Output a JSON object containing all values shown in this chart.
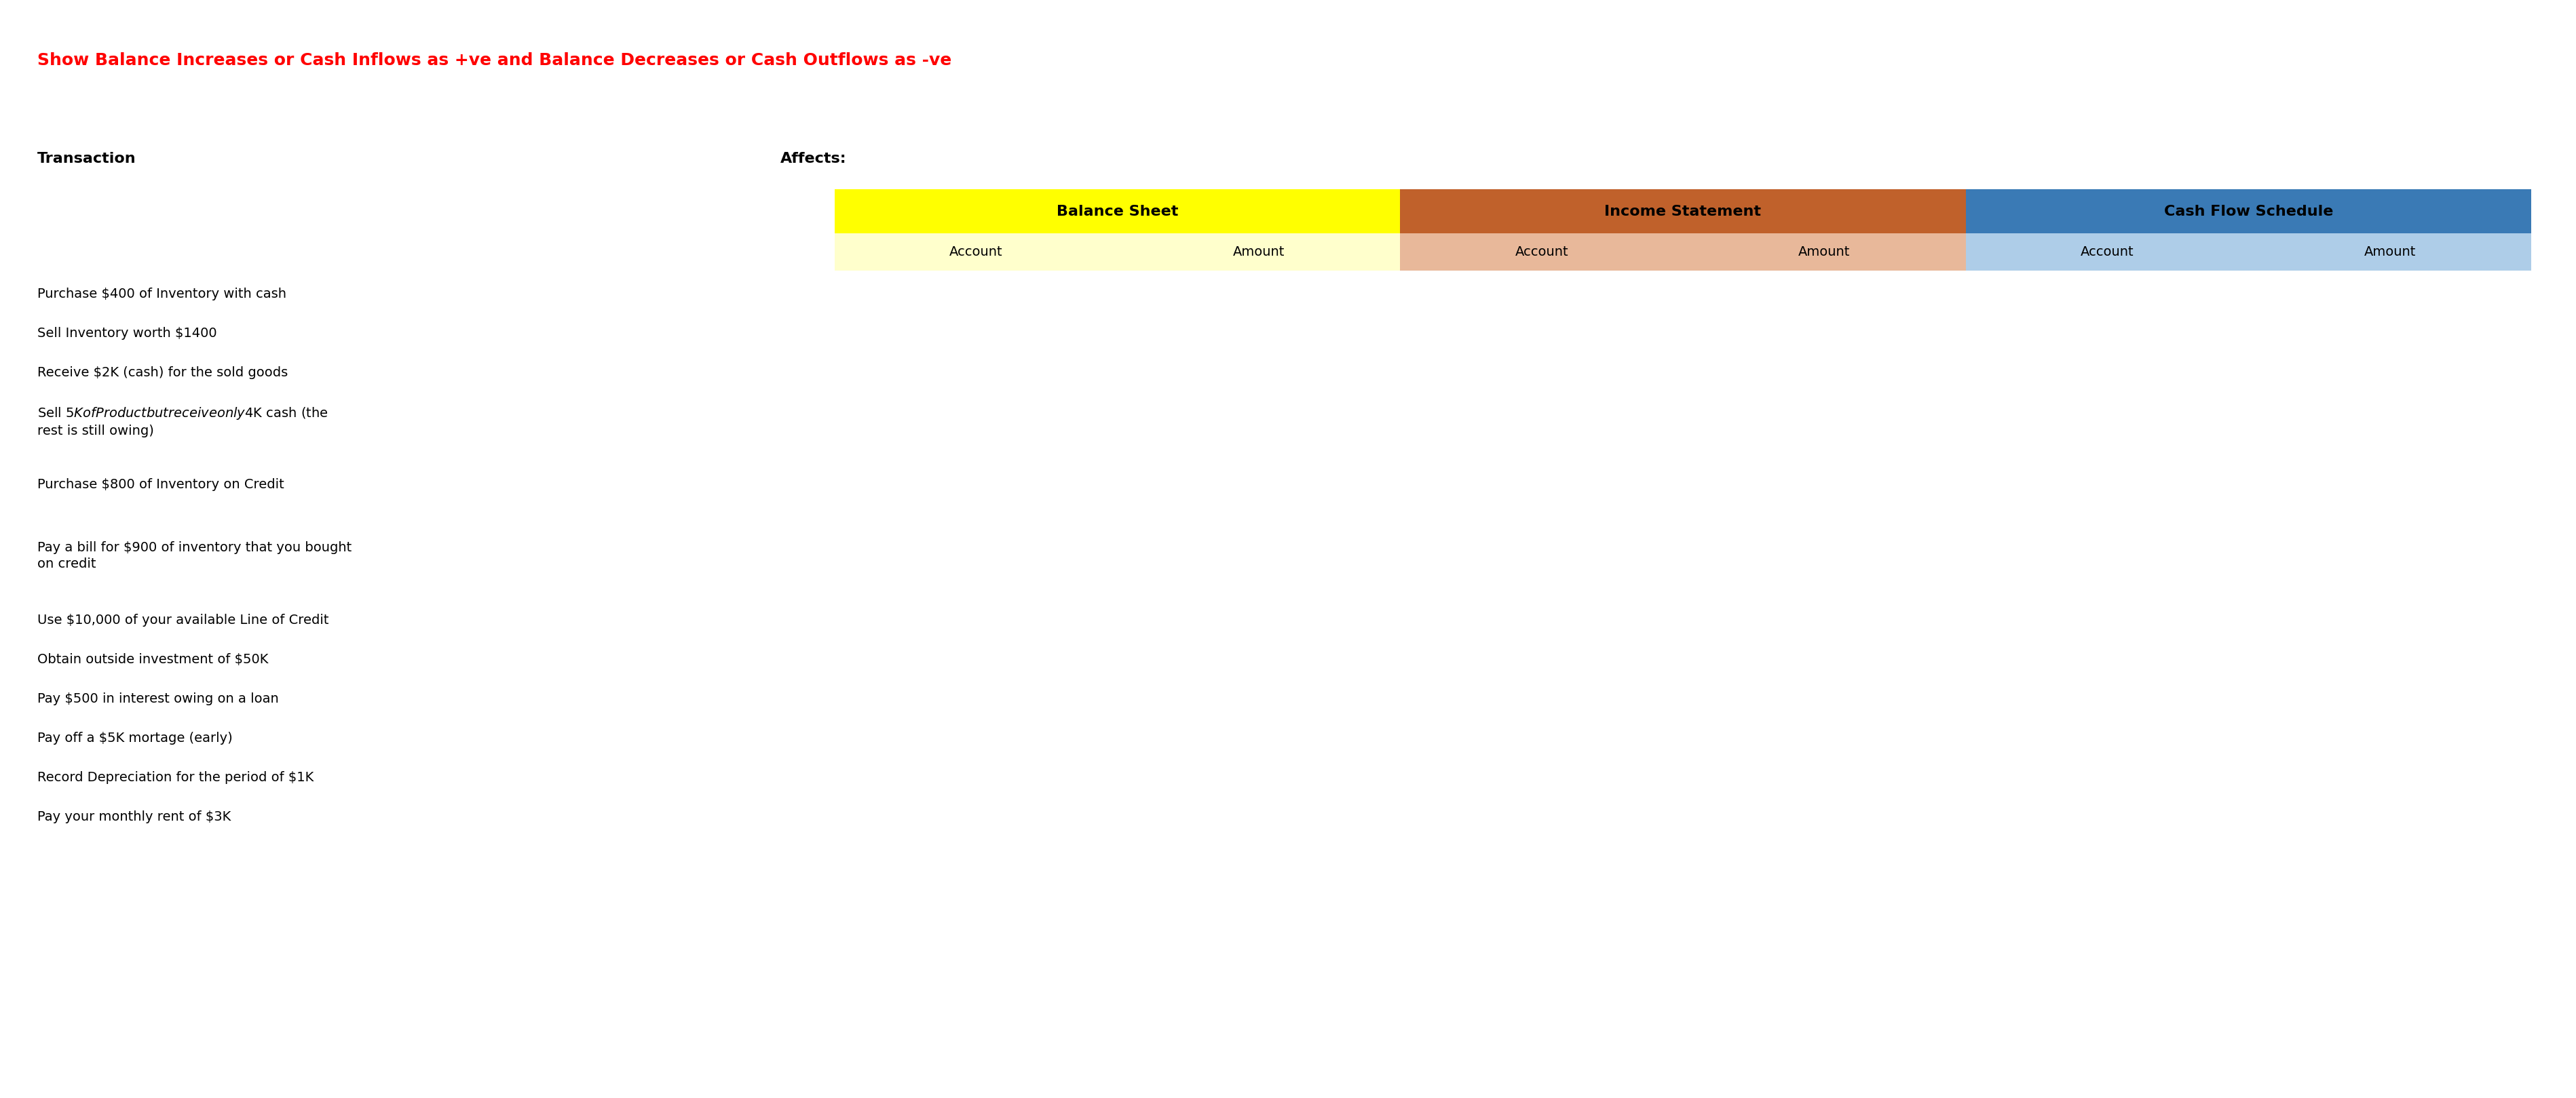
{
  "title": "Show Balance Increases or Cash Inflows as +ve and Balance Decreases or Cash Outflows as -ve",
  "title_color": "#FF0000",
  "title_fontsize": 18,
  "transaction_label": "Transaction",
  "affects_label": "Affects:",
  "header1": "Balance Sheet",
  "header2": "Income Statement",
  "header3": "Cash Flow Schedule",
  "header1_bg": "#FFFF00",
  "header2_bg": "#C0612B",
  "header3_bg": "#3A7AB5",
  "subheader1_bg": "#FFFFCC",
  "subheader2_bg": "#E8B89A",
  "subheader3_bg": "#AECDE8",
  "transactions": [
    "Purchase $400 of Inventory with cash",
    "Sell Inventory worth $1400",
    "Receive $2K (cash) for the sold goods",
    "Sell $5K of Product but receive only $4K cash (the\nrest is still owing)",
    "Purchase $800 of Inventory on Credit",
    "",
    "Pay a bill for $900 of inventory that you bought\non credit",
    "Use $10,000 of your available Line of Credit",
    "Obtain outside investment of $50K",
    "Pay $500 in interest owing on a loan",
    "Pay off a $5K mortage (early)",
    "Record Depreciation for the period of $1K",
    "Pay your monthly rent of $3K"
  ],
  "bg_color": "#FFFFFF",
  "text_fontsize": 14,
  "label_fontsize": 16,
  "header_fontsize": 16
}
